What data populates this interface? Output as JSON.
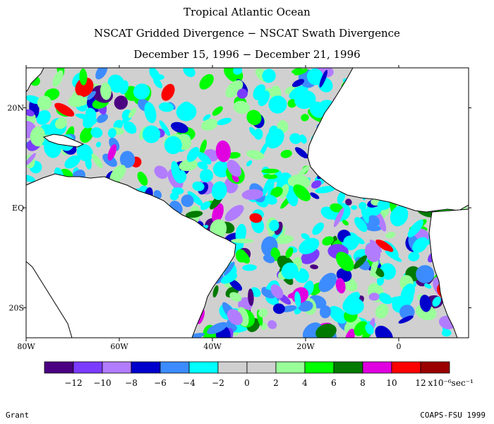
{
  "header": {
    "title": "Tropical Atlantic Ocean",
    "subtitle": "NSCAT Gridded Divergence − NSCAT Swath Divergence",
    "date_range": "December 15, 1996 − December 21, 1996"
  },
  "map": {
    "lon_range": [
      -80,
      15
    ],
    "lat_range": [
      -26,
      28
    ],
    "x_ticks": [
      {
        "label": "80W",
        "lon": -80
      },
      {
        "label": "60W",
        "lon": -60
      },
      {
        "label": "40W",
        "lon": -40
      },
      {
        "label": "20W",
        "lon": -20
      },
      {
        "label": "0",
        "lon": 0
      }
    ],
    "y_ticks": [
      {
        "label": "20N",
        "lat": 20
      },
      {
        "label": "EQ",
        "lat": 0
      },
      {
        "label": "20S",
        "lat": -20
      }
    ],
    "land_color": "#ffffff",
    "neutral_color": "#d0d0d0"
  },
  "colorbar": {
    "colors": [
      "#4b0082",
      "#7b3cff",
      "#b27cff",
      "#0000cd",
      "#3c8cff",
      "#00ffff",
      "#d0d0d0",
      "#d0d0d0",
      "#99ff99",
      "#00ff00",
      "#007a00",
      "#e000e0",
      "#ff0000",
      "#9a0000"
    ],
    "labels": [
      "−12",
      "−10",
      "−8",
      "−6",
      "−4",
      "−2",
      "0",
      "2",
      "4",
      "6",
      "8",
      "10",
      "12"
    ],
    "unit": "x10⁻⁶sec⁻¹"
  },
  "footer": {
    "left": "Grant",
    "right": "COAPS-FSU 1999"
  }
}
